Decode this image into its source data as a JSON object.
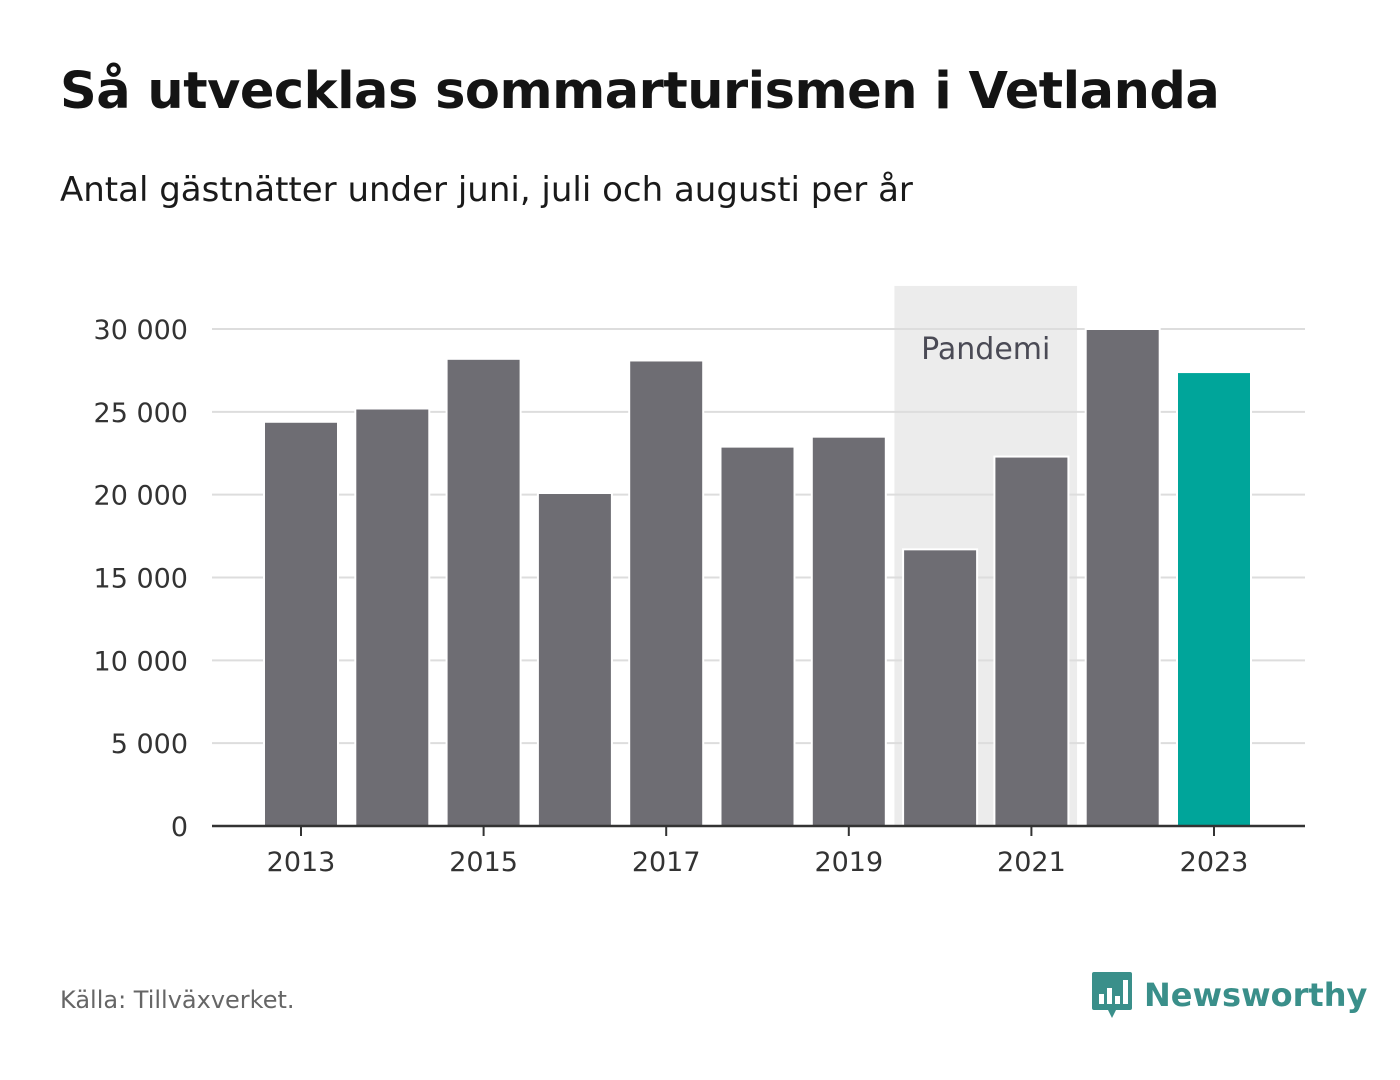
{
  "header": {
    "title": "Så utvecklas sommarturismen i Vetlanda",
    "subtitle": "Antal gästnätter under juni, juli och augusti per år"
  },
  "footer": {
    "source": "Källa: Tillväxverket.",
    "brand": "Newsworthy"
  },
  "colors": {
    "bar": "#6e6d73",
    "highlight": "#00a59a",
    "pandemic_band": "#ececec",
    "grid": "#dddddd",
    "axis": "#333333",
    "brand": "#3a8f8a"
  },
  "chart_data": {
    "type": "bar",
    "title": "Så utvecklas sommarturismen i Vetlanda",
    "subtitle": "Antal gästnätter under juni, juli och augusti per år",
    "categories": [
      "2013",
      "2014",
      "2015",
      "2016",
      "2017",
      "2018",
      "2019",
      "2020",
      "2021",
      "2022",
      "2023"
    ],
    "values": [
      24400,
      25200,
      28200,
      20100,
      28100,
      22900,
      23500,
      16700,
      22300,
      30000,
      27400
    ],
    "highlight_category": "2023",
    "x_tick_labels": [
      "2013",
      "2015",
      "2017",
      "2019",
      "2021",
      "2023"
    ],
    "y_ticks": [
      0,
      5000,
      10000,
      15000,
      20000,
      25000,
      30000
    ],
    "y_tick_labels": [
      "0",
      "5 000",
      "10 000",
      "15 000",
      "20 000",
      "25 000",
      "30 000"
    ],
    "ylim": [
      0,
      32600
    ],
    "grid": true,
    "annotations": [
      {
        "label": "Pandemi",
        "from_category": "2020",
        "to_category": "2021"
      }
    ]
  }
}
